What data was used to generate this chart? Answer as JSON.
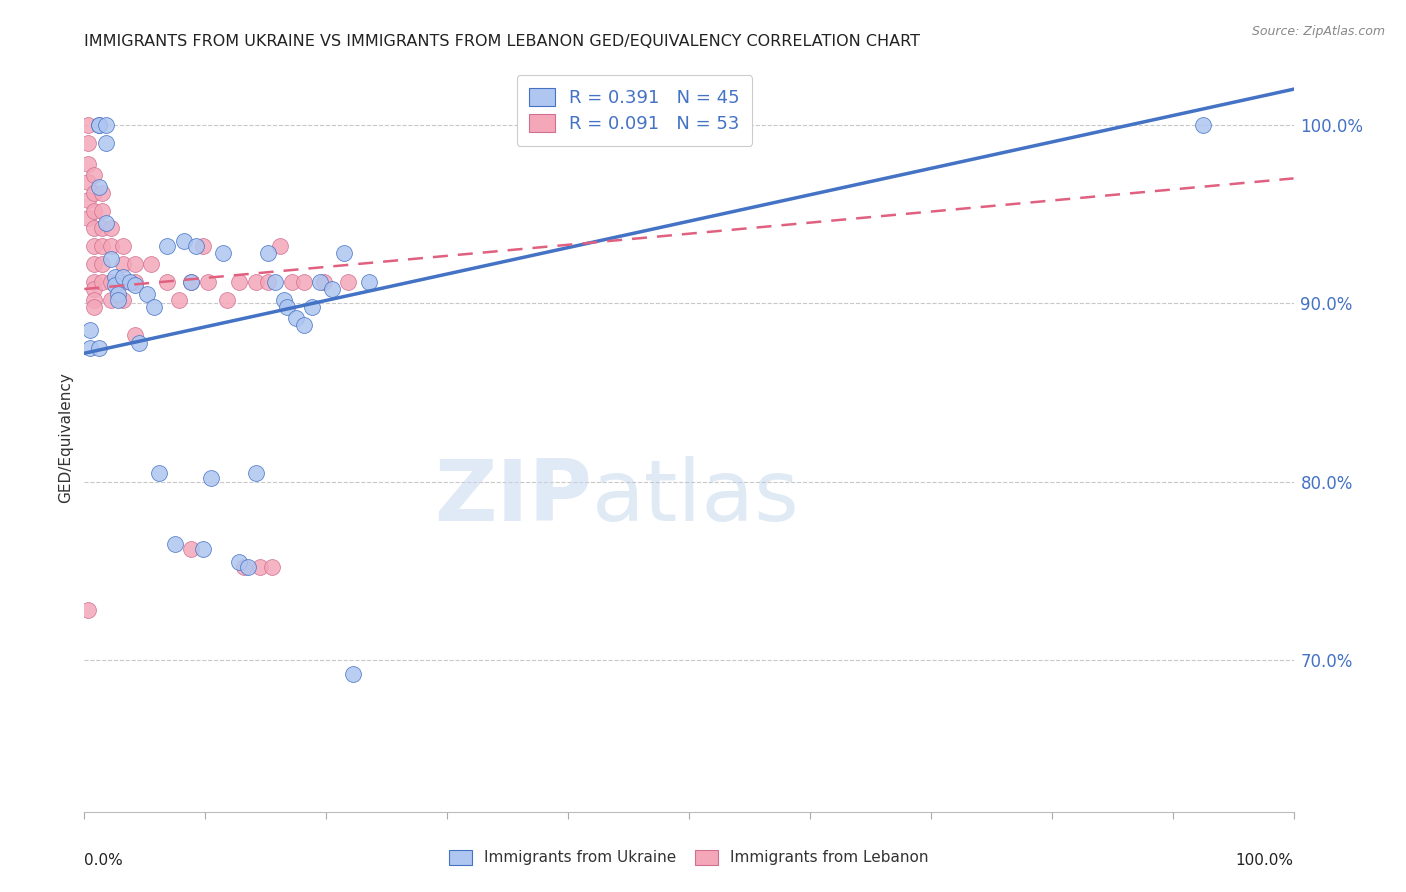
{
  "title": "IMMIGRANTS FROM UKRAINE VS IMMIGRANTS FROM LEBANON GED/EQUIVALENCY CORRELATION CHART",
  "source": "Source: ZipAtlas.com",
  "ylabel": "GED/Equivalency",
  "ylabel_ticks": [
    "70.0%",
    "80.0%",
    "90.0%",
    "100.0%"
  ],
  "ylabel_ticks_vals": [
    0.7,
    0.8,
    0.9,
    1.0
  ],
  "xlim": [
    0.0,
    1.0
  ],
  "ylim": [
    0.615,
    1.035
  ],
  "ukraine_color": "#aec6f0",
  "lebanon_color": "#f4a7b9",
  "ukraine_R": 0.391,
  "ukraine_N": 45,
  "lebanon_R": 0.091,
  "lebanon_N": 53,
  "ukraine_line_color": "#4472c4",
  "lebanon_line_color": "#e06080",
  "text_color": "#4472c4",
  "watermark_zip": "ZIP",
  "watermark_atlas": "atlas",
  "ukraine_line_x0": 0.0,
  "ukraine_line_y0": 0.872,
  "ukraine_line_x1": 1.0,
  "ukraine_line_y1": 1.02,
  "lebanon_line_x0": 0.0,
  "lebanon_line_y0": 0.908,
  "lebanon_line_x1": 1.0,
  "lebanon_line_y1": 0.97,
  "ukraine_scatter_x": [
    0.005,
    0.005,
    0.012,
    0.012,
    0.012,
    0.012,
    0.018,
    0.018,
    0.018,
    0.022,
    0.025,
    0.025,
    0.028,
    0.028,
    0.032,
    0.038,
    0.042,
    0.045,
    0.052,
    0.058,
    0.062,
    0.068,
    0.075,
    0.082,
    0.088,
    0.092,
    0.098,
    0.105,
    0.115,
    0.128,
    0.135,
    0.142,
    0.152,
    0.158,
    0.165,
    0.168,
    0.175,
    0.182,
    0.188,
    0.195,
    0.205,
    0.215,
    0.222,
    0.235,
    0.925
  ],
  "ukraine_scatter_y": [
    0.885,
    0.875,
    1.0,
    1.0,
    0.965,
    0.875,
    1.0,
    0.99,
    0.945,
    0.925,
    0.915,
    0.91,
    0.905,
    0.902,
    0.915,
    0.912,
    0.91,
    0.878,
    0.905,
    0.898,
    0.805,
    0.932,
    0.765,
    0.935,
    0.912,
    0.932,
    0.762,
    0.802,
    0.928,
    0.755,
    0.752,
    0.805,
    0.928,
    0.912,
    0.902,
    0.898,
    0.892,
    0.888,
    0.898,
    0.912,
    0.908,
    0.928,
    0.692,
    0.912,
    1.0
  ],
  "lebanon_scatter_x": [
    0.003,
    0.003,
    0.003,
    0.003,
    0.003,
    0.003,
    0.003,
    0.008,
    0.008,
    0.008,
    0.008,
    0.008,
    0.008,
    0.008,
    0.008,
    0.008,
    0.008,
    0.015,
    0.015,
    0.015,
    0.015,
    0.015,
    0.015,
    0.022,
    0.022,
    0.022,
    0.022,
    0.032,
    0.032,
    0.032,
    0.032,
    0.042,
    0.042,
    0.042,
    0.055,
    0.068,
    0.078,
    0.088,
    0.088,
    0.098,
    0.102,
    0.118,
    0.128,
    0.132,
    0.142,
    0.145,
    0.152,
    0.155,
    0.162,
    0.172,
    0.182,
    0.198,
    0.218
  ],
  "lebanon_scatter_y": [
    1.0,
    0.99,
    0.978,
    0.968,
    0.958,
    0.948,
    0.728,
    0.972,
    0.962,
    0.952,
    0.942,
    0.932,
    0.922,
    0.912,
    0.908,
    0.902,
    0.898,
    0.962,
    0.952,
    0.942,
    0.932,
    0.922,
    0.912,
    0.942,
    0.932,
    0.912,
    0.902,
    0.932,
    0.922,
    0.912,
    0.902,
    0.922,
    0.912,
    0.882,
    0.922,
    0.912,
    0.902,
    0.912,
    0.762,
    0.932,
    0.912,
    0.902,
    0.912,
    0.752,
    0.912,
    0.752,
    0.912,
    0.752,
    0.932,
    0.912,
    0.912,
    0.912,
    0.912
  ]
}
